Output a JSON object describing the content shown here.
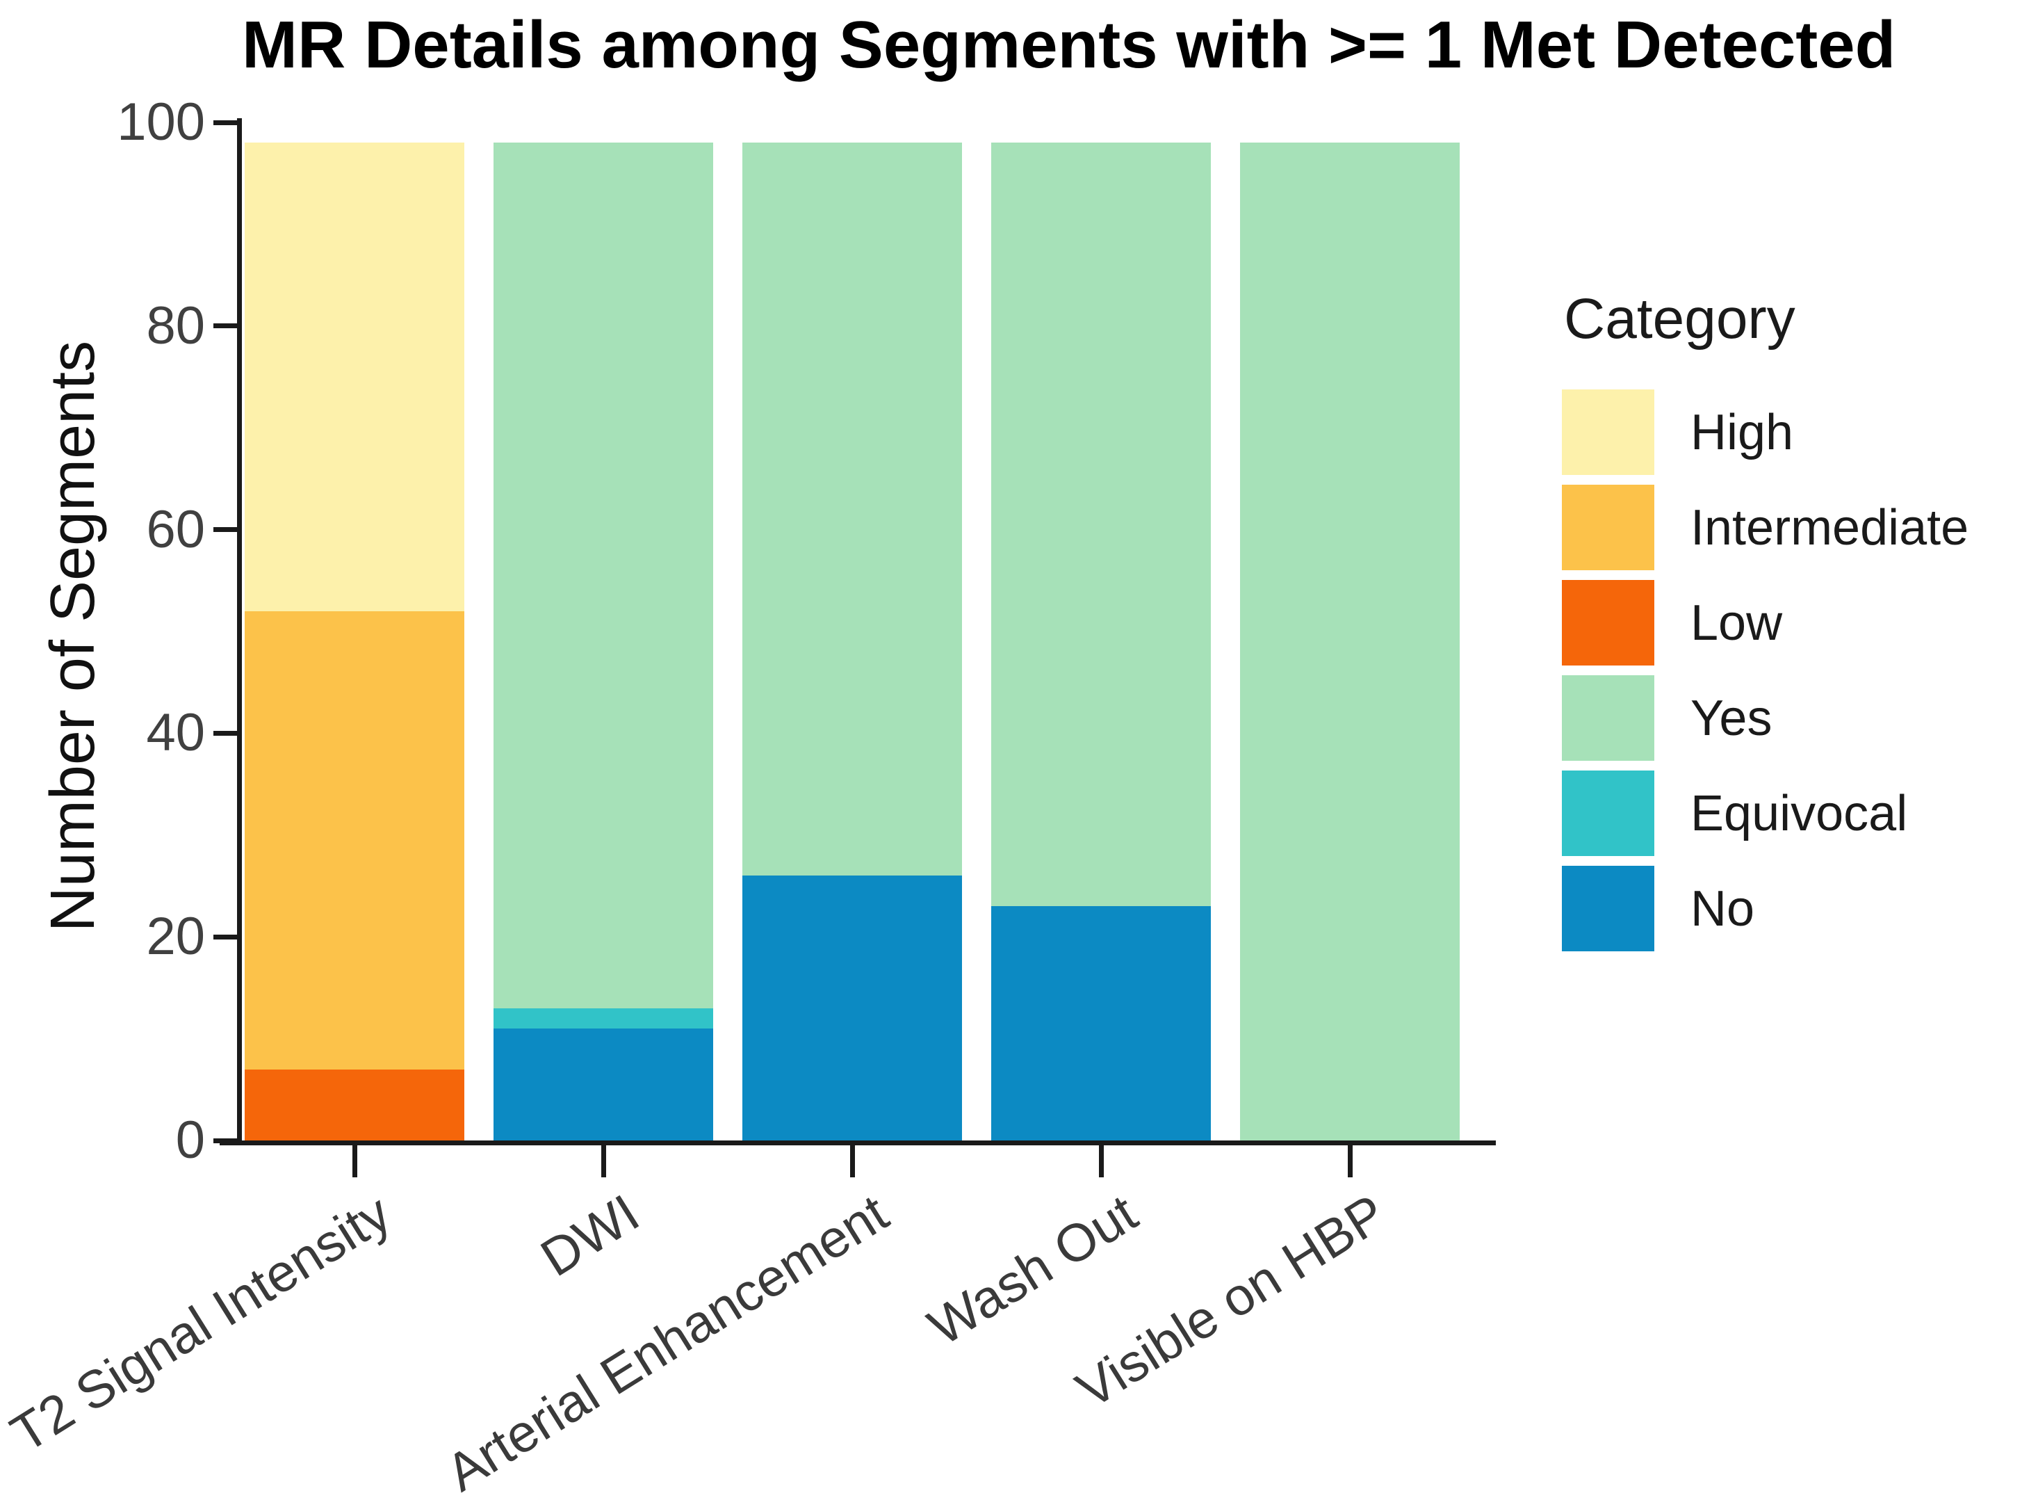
{
  "title": "MR Details among Segments with >= 1 Met Detected",
  "y_axis": {
    "label": "Number of Segments",
    "ticks": [
      0,
      20,
      40,
      60,
      80,
      100
    ],
    "max": 100
  },
  "x_axis": {
    "categories": [
      "T2 Signal Intensity",
      "DWI",
      "Arterial Enhancement",
      "Wash Out",
      "Visible on HBP"
    ]
  },
  "legend": {
    "title": "Category",
    "entries": [
      {
        "label": "High",
        "color": "#FDF1AB"
      },
      {
        "label": "Intermediate",
        "color": "#FCC24A"
      },
      {
        "label": "Low",
        "color": "#F5660A"
      },
      {
        "label": "Yes",
        "color": "#A6E1B8"
      },
      {
        "label": "Equivocal",
        "color": "#31C3C8"
      },
      {
        "label": "No",
        "color": "#0C8AC3"
      }
    ]
  },
  "chart_data": {
    "type": "bar",
    "stacked": true,
    "title": "MR Details among Segments with >= 1 Met Detected",
    "ylabel": "Number of Segments",
    "ylim": [
      0,
      100
    ],
    "grid": false,
    "legend_position": "right",
    "categories": [
      "T2 Signal Intensity",
      "DWI",
      "Arterial Enhancement",
      "Wash Out",
      "Visible on HBP"
    ],
    "series": [
      {
        "name": "High",
        "color": "#FDF1AB",
        "values": [
          46,
          0,
          0,
          0,
          0
        ]
      },
      {
        "name": "Intermediate",
        "color": "#FCC24A",
        "values": [
          45,
          0,
          0,
          0,
          0
        ]
      },
      {
        "name": "Low",
        "color": "#F5660A",
        "values": [
          7,
          0,
          0,
          0,
          0
        ]
      },
      {
        "name": "Yes",
        "color": "#A6E1B8",
        "values": [
          0,
          85,
          72,
          75,
          98
        ]
      },
      {
        "name": "Equivocal",
        "color": "#31C3C8",
        "values": [
          0,
          2,
          0,
          0,
          0
        ]
      },
      {
        "name": "No",
        "color": "#0C8AC3",
        "values": [
          0,
          11,
          26,
          23,
          0
        ]
      }
    ],
    "stack_order_bottom_to_top": [
      "Low",
      "Intermediate",
      "High",
      "No",
      "Equivocal",
      "Yes"
    ],
    "bar_totals": [
      98,
      98,
      98,
      98,
      98
    ]
  }
}
